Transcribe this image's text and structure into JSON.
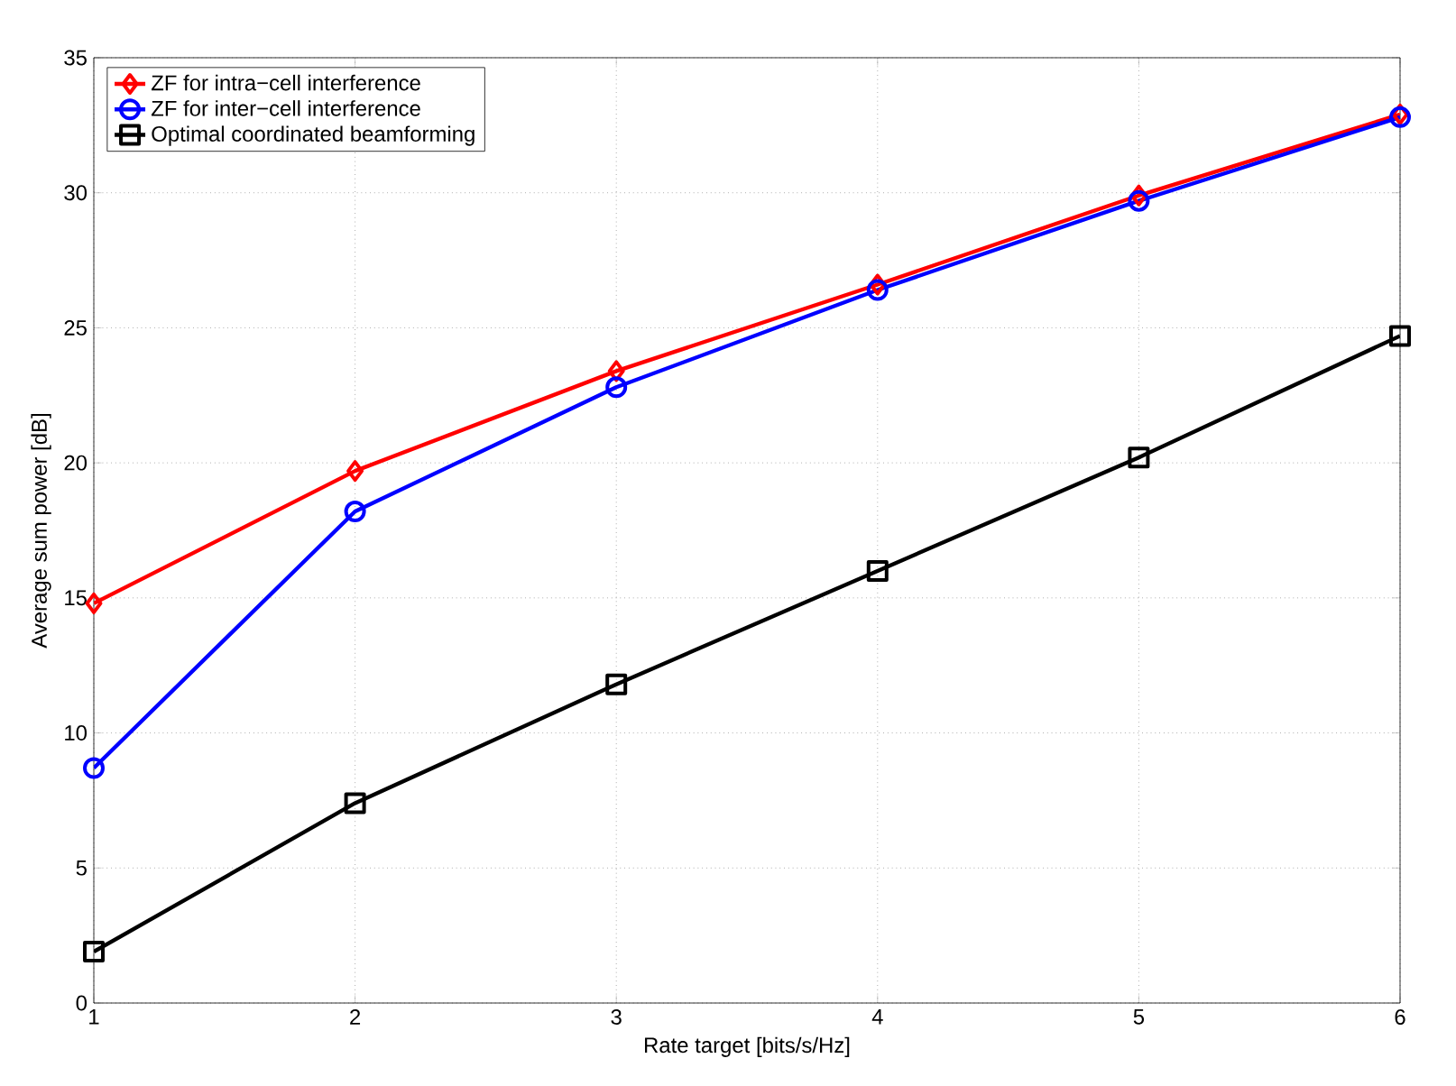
{
  "chart_data": {
    "type": "line",
    "xlabel": "Rate target [bits/s/Hz]",
    "ylabel": "Average sum power [dB]",
    "x": [
      1,
      2,
      3,
      4,
      5,
      6
    ],
    "xlim": [
      1,
      6
    ],
    "xticks": [
      1,
      2,
      3,
      4,
      5,
      6
    ],
    "ylim": [
      0,
      35
    ],
    "yticks": [
      0,
      5,
      10,
      15,
      20,
      25,
      30,
      35
    ],
    "grid": true,
    "legend": "top left",
    "line_style": "solid",
    "series": [
      {
        "name": "ZF for intra−cell interference",
        "color": "#ff0000",
        "marker": "diamond",
        "values": [
          14.8,
          19.7,
          23.4,
          26.6,
          29.9,
          32.9
        ]
      },
      {
        "name": "ZF for inter−cell interference",
        "color": "#0000ff",
        "marker": "circle",
        "values": [
          8.7,
          18.2,
          22.8,
          26.4,
          29.7,
          32.8
        ]
      },
      {
        "name": "Optimal coordinated beamforming",
        "color": "#000000",
        "marker": "square",
        "values": [
          1.9,
          7.4,
          11.8,
          16.0,
          20.2,
          24.7
        ]
      }
    ]
  }
}
